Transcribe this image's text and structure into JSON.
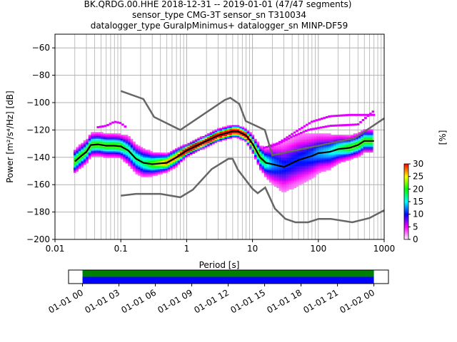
{
  "chart_data": {
    "type": "heatmap",
    "title_lines": [
      "BK.QRDG.00.HHE   2018-12-31 -- 2019-01-01  (47/47 segments)",
      "sensor_type CMG-3T sensor_sn T310034",
      "datalogger_type GuralpMinimus+ datalogger_sn MINP-DF59"
    ],
    "xlabel": "Period [s]",
    "ylabel": "Power [m²/s⁴/Hz] [dB]",
    "xscale": "log",
    "xlim": [
      0.01,
      1000
    ],
    "ylim": [
      -200,
      -50
    ],
    "x_ticks": [
      0.01,
      0.1,
      1,
      10,
      100,
      1000
    ],
    "x_tick_labels": [
      "0.01",
      "0.1",
      "1",
      "10",
      "100",
      "1000"
    ],
    "y_ticks": [
      -200,
      -180,
      -160,
      -140,
      -120,
      -100,
      -80,
      -60
    ],
    "y_tick_labels": [
      "−200",
      "−180",
      "−160",
      "−140",
      "−120",
      "−100",
      "−80",
      "−60"
    ],
    "grid": true,
    "mean_curve": {
      "period": [
        0.02,
        0.025,
        0.03,
        0.035,
        0.045,
        0.06,
        0.08,
        0.1,
        0.13,
        0.17,
        0.22,
        0.3,
        0.5,
        0.7,
        1,
        2,
        3,
        5,
        6,
        8,
        10,
        13,
        16,
        20,
        30,
        50,
        80,
        100,
        150,
        200,
        300,
        400,
        500,
        700
      ],
      "db": [
        -143,
        -139,
        -136,
        -131,
        -130.5,
        -131.5,
        -131.5,
        -132,
        -135,
        -141,
        -144,
        -145,
        -144,
        -140,
        -135,
        -128,
        -124,
        -121,
        -121,
        -124,
        -130,
        -140,
        -144,
        -145,
        -147,
        -142,
        -139,
        -137,
        -136,
        -134,
        -133,
        -131,
        -128,
        -128
      ],
      "spread_db": [
        4,
        4,
        4,
        4,
        4,
        4,
        4,
        4,
        5,
        5,
        5,
        4,
        3,
        3,
        2,
        2,
        2,
        2,
        2,
        2,
        3,
        4,
        5,
        7,
        9,
        9,
        8,
        7,
        6,
        5,
        4,
        4,
        4,
        4
      ]
    },
    "nhnm": {
      "period": [
        0.1,
        0.22,
        0.32,
        0.8,
        3.8,
        4.6,
        6.3,
        7.9,
        15.4,
        20,
        354.8,
        1000
      ],
      "db": [
        -91.5,
        -97.4,
        -110.5,
        -120,
        -98,
        -96.5,
        -101,
        -113.5,
        -120,
        -138.5,
        -126,
        -111.5
      ]
    },
    "nlnm": {
      "period": [
        0.1,
        0.17,
        0.4,
        0.8,
        1.24,
        2.4,
        4.3,
        5,
        6,
        10,
        12,
        15.6,
        21.9,
        31.6,
        45,
        70,
        101,
        154,
        328,
        600,
        1000
      ],
      "db": [
        -168,
        -166.7,
        -166.7,
        -169.2,
        -163.7,
        -148.6,
        -141.1,
        -141.1,
        -149,
        -163,
        -166.2,
        -162.1,
        -177.5,
        -185,
        -187.5,
        -187.5,
        -185,
        -185,
        -187.5,
        -184.4,
        -178.7
      ]
    },
    "outlier_tracks": [
      {
        "period": [
          0.045,
          0.06,
          0.08,
          0.1,
          0.12
        ],
        "db": [
          -118,
          -117,
          -114,
          -115,
          -118
        ]
      },
      {
        "period": [
          20,
          30,
          50,
          80,
          150,
          300,
          700
        ],
        "db": [
          -132,
          -127,
          -120,
          -114,
          -110,
          -109,
          -109
        ]
      },
      {
        "period": [
          15,
          25,
          40,
          70,
          150,
          400,
          700
        ],
        "db": [
          -133,
          -130,
          -125,
          -120,
          -117,
          -116,
          -106
        ]
      }
    ],
    "colorbar": {
      "label": "[%]",
      "range": [
        0,
        30
      ],
      "ticks": [
        0,
        5,
        10,
        15,
        20,
        25,
        30
      ],
      "tick_labels": [
        "0",
        "5",
        "10",
        "15",
        "20",
        "25",
        "30"
      ],
      "colors": [
        "#ffffff",
        "#ff00ff",
        "#0000ff",
        "#00ffff",
        "#00ff00",
        "#ffff00",
        "#ff0000"
      ]
    },
    "timeline": {
      "tick_labels": [
        "01-01 00",
        "01-01 03",
        "01-01 06",
        "01-01 09",
        "01-01 12",
        "01-01 15",
        "01-01 18",
        "01-01 21",
        "01-02 00"
      ],
      "coverage_start_hour": 0,
      "coverage_end_hour": 24,
      "range_hours": [
        -1.15,
        25.2
      ],
      "data_color": "#0000ff",
      "processed_color": "#008000"
    },
    "noise_model_color": "#666666",
    "mean_color": "#000000"
  }
}
